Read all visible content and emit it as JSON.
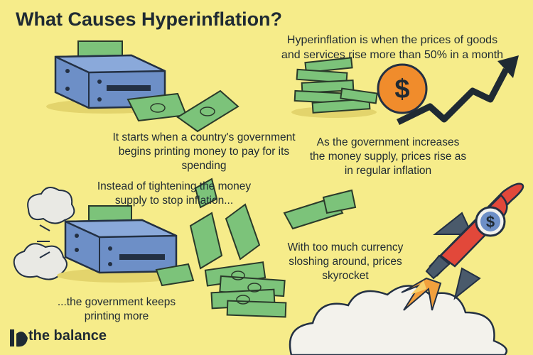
{
  "title": "What Causes Hyperinflation?",
  "definition": {
    "line1": "Hyperinflation is when the prices of goods",
    "line2": "and services rise more than 50% in a month"
  },
  "step1": {
    "line1": "It starts when a country's government",
    "line2": "begins printing money to pay for its",
    "line3": "spending"
  },
  "step2": {
    "line1": "As the government increases",
    "line2": "the money supply, prices rise as",
    "line3": "in regular inflation"
  },
  "step3": {
    "line1": "Instead of tightening the money",
    "line2": "supply to stop inflation..."
  },
  "step4": {
    "line1": "...the government keeps",
    "line2": "printing more"
  },
  "step5": {
    "line1": "With too much currency",
    "line2": "sloshing around, prices",
    "line3": "skyrocket"
  },
  "brand": {
    "name": "the balance"
  },
  "dollar_symbol": "$",
  "colors": {
    "background": "#f6ec8a",
    "printer": "#6d8fc7",
    "money": "#7cc37a",
    "coin": "#f08c2c",
    "rocket": "#e2483a",
    "text": "#1f2a33"
  }
}
